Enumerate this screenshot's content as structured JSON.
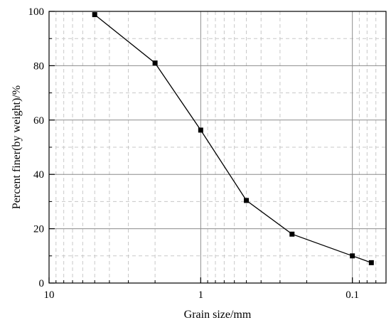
{
  "chart_data": {
    "type": "line",
    "title": "",
    "xlabel": "Grain size/mm",
    "ylabel": "Percent finer(by weight)/%",
    "x_scale": "log",
    "x_reversed": true,
    "xlim": [
      10,
      0.06
    ],
    "ylim": [
      0,
      100
    ],
    "x_ticks": [
      10,
      1,
      0.1
    ],
    "x_tick_labels": [
      "10",
      "1",
      "0.1"
    ],
    "y_ticks": [
      0,
      20,
      40,
      60,
      80,
      100
    ],
    "y_tick_labels": [
      "0",
      "20",
      "40",
      "60",
      "80",
      "100"
    ],
    "grid_major": true,
    "grid_minor": true,
    "series": [
      {
        "x": [
          5,
          2,
          1,
          0.5,
          0.25,
          0.1,
          0.075
        ],
        "y": [
          98.8,
          81,
          56.3,
          30.4,
          18,
          10,
          7.5
        ],
        "marker": "square",
        "color": "#000000"
      }
    ]
  }
}
